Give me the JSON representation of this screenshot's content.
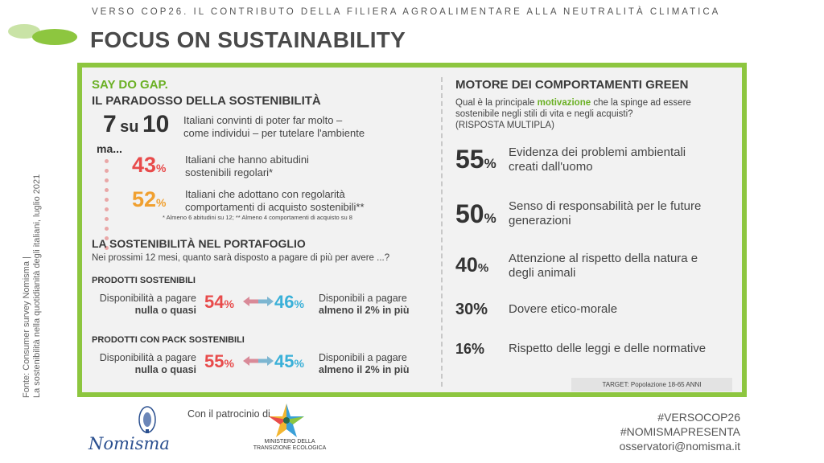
{
  "header": {
    "kicker": "VERSO COP26. IL CONTRIBUTO DELLA FILIERA AGROALIMENTARE ALLA NEUTRALITÀ CLIMATICA",
    "title": "FOCUS ON SUSTAINABILITY"
  },
  "source": {
    "line1": "Fonte: Consumer survey Nomisma |",
    "line2": "La sostenibilità nella quotidianità degli italiani, luglio 2021"
  },
  "left": {
    "say_do": "SAY DO GAP.",
    "paradox": "IL PARADOSSO DELLA SOSTENIBILITÀ",
    "stat": {
      "a": "7",
      "su": "su",
      "b": "10",
      "text1": "Italiani convinti di poter far molto –",
      "text2": "come individui – per tutelare l'ambiente"
    },
    "ma": "ma...",
    "habits": {
      "value": "43",
      "unit": "%",
      "text1": "Italiani che hanno abitudini",
      "text2": "sostenibili regolari*"
    },
    "purchases": {
      "value": "52",
      "unit": "%",
      "text1": "Italiani che adottano con regolarità",
      "text2": "comportamenti di acquisto sostenibili**"
    },
    "footnote": "* Almeno 6 abitudini su 12; ** Almeno 4 comportamenti di acquisto su 8",
    "portfolio_title": "LA SOSTENIBILITÀ NEL PORTAFOGLIO",
    "portfolio_question": "Nei prossimi 12 mesi, quanto sarà disposto a pagare di più per avere ...?",
    "groups": [
      {
        "title": "PRODOTTI SOSTENIBILI",
        "left_1": "Disponibilità a pagare",
        "left_2": "nulla o quasi",
        "left_value": "54",
        "right_value": "46",
        "unit": "%",
        "right_1": "Disponibili a pagare",
        "right_2": "almeno il 2% in più"
      },
      {
        "title": "PRODOTTI CON PACK SOSTENIBILI",
        "left_1": "Disponibilità a pagare",
        "left_2": "nulla o quasi",
        "left_value": "55",
        "right_value": "45",
        "unit": "%",
        "right_1": "Disponibili a pagare",
        "right_2": "almeno il 2% in più"
      }
    ]
  },
  "right": {
    "title": "MOTORE DEI COMPORTAMENTI GREEN",
    "q_pre": "Qual è la principale ",
    "q_highlight": "motivazione",
    "q_post": " che la spinge ad essere",
    "q_line2": "sostenibile negli stili di vita e negli acquisti?",
    "q_line3": "(RISPOSTA MULTIPLA)",
    "reasons": [
      {
        "value": "55",
        "unit": "%",
        "l1": "Evidenza dei problemi ambientali",
        "l2": "creati dall'uomo"
      },
      {
        "value": "50",
        "unit": "%",
        "l1": "Senso di responsabilità per le future",
        "l2": "generazioni"
      },
      {
        "value": "40",
        "unit": "%",
        "l1": "Attenzione al rispetto della natura e",
        "l2": "degli animali"
      },
      {
        "value": "30%",
        "l1": "Dovere etico-morale"
      },
      {
        "value": "16%",
        "l1": "Rispetto delle leggi e delle normative"
      }
    ],
    "target": "TARGET: Popolazione 18-65 ANNI"
  },
  "footer": {
    "patrocinio": "Con il patrocinio di",
    "nomisma": "Nomisma",
    "ministero_1": "MINISTERO DELLA",
    "ministero_2": "TRANSIZIONE ECOLOGICA",
    "tag1": "#VERSOCOP26",
    "tag2": "#NOMISMAPRESENTA",
    "email": "osservatori@nomisma.it"
  },
  "colors": {
    "green": "#8dc63f",
    "red": "#e84b4b",
    "orange": "#f0a030",
    "blue": "#3ab0d8"
  }
}
